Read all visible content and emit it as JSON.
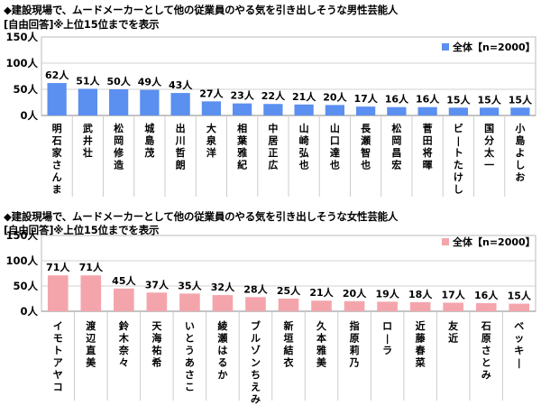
{
  "chart_data": [
    {
      "type": "bar",
      "title": "◆建設現場で、ムードメーカーとして他の従業員のやる気を引き出しそうな男性芸能人",
      "subtitle": "[自由回答]※上位15位までを表示",
      "color": "#5b8ff0",
      "ylim": [
        0,
        150
      ],
      "yticks": [
        0,
        50,
        100,
        150
      ],
      "ytick_labels": [
        "0人",
        "50人",
        "100人",
        "150人"
      ],
      "series": [
        {
          "name": "全体【n=2000】",
          "values": [
            62,
            51,
            50,
            49,
            43,
            27,
            23,
            22,
            21,
            20,
            17,
            16,
            16,
            15,
            15,
            15
          ]
        }
      ],
      "value_labels": [
        "62人",
        "51人",
        "50人",
        "49人",
        "43人",
        "27人",
        "23人",
        "22人",
        "21人",
        "20人",
        "17人",
        "16人",
        "16人",
        "15人",
        "15人",
        "15人"
      ],
      "categories": [
        "明石家さんま",
        "武井壮",
        "松岡修造",
        "城島茂",
        "出川哲朗",
        "大泉洋",
        "相葉雅紀",
        "中居正広",
        "山崎弘也",
        "山口達也",
        "長瀬智也",
        "松岡昌宏",
        "菅田将暉",
        "ビートたけし",
        "国分太一",
        "小島よしお"
      ],
      "legend": "top-right"
    },
    {
      "type": "bar",
      "title": "◆建設現場で、ムードメーカーとして他の従業員のやる気を引き出しそうな女性芸能人",
      "subtitle": "[自由回答]※上位15位までを表示",
      "color": "#f4a5ac",
      "ylim": [
        0,
        150
      ],
      "yticks": [
        0,
        50,
        100,
        150
      ],
      "ytick_labels": [
        "0人",
        "50人",
        "100人",
        "150人"
      ],
      "series": [
        {
          "name": "全体【n=2000】",
          "values": [
            71,
            71,
            45,
            37,
            35,
            32,
            28,
            25,
            21,
            20,
            19,
            18,
            17,
            16,
            15
          ]
        }
      ],
      "value_labels": [
        "71人",
        "71人",
        "45人",
        "37人",
        "35人",
        "32人",
        "28人",
        "25人",
        "21人",
        "20人",
        "19人",
        "18人",
        "17人",
        "16人",
        "15人"
      ],
      "categories": [
        "イモトアヤコ",
        "渡辺直美",
        "鈴木奈々",
        "天海祐希",
        "いとうあさこ",
        "綾瀬はるか",
        "ブルゾンちえみ",
        "新垣結衣",
        "久本雅美",
        "指原莉乃",
        "ローラ",
        "近藤春菜",
        "友近",
        "石原さとみ",
        "ベッキー"
      ],
      "legend": "top-right"
    }
  ]
}
